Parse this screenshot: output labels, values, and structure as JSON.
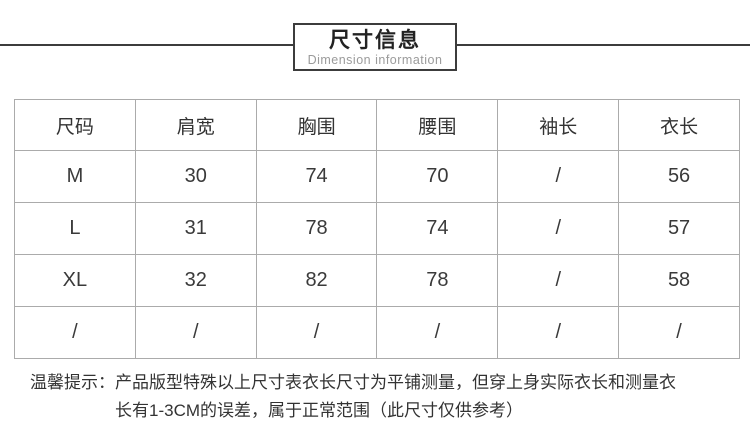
{
  "header": {
    "title": "尺寸信息",
    "subtitle": "Dimension information"
  },
  "table": {
    "columns": [
      "尺码",
      "肩宽",
      "胸围",
      "腰围",
      "袖长",
      "衣长"
    ],
    "rows": [
      [
        "M",
        "30",
        "74",
        "70",
        "/",
        "56"
      ],
      [
        "L",
        "31",
        "78",
        "74",
        "/",
        "57"
      ],
      [
        "XL",
        "32",
        "82",
        "78",
        "/",
        "58"
      ],
      [
        "/",
        "/",
        "/",
        "/",
        "/",
        "/"
      ]
    ]
  },
  "note": {
    "label": "温馨提示：",
    "text": "产品版型特殊以上尺寸表衣长尺寸为平铺测量，但穿上身实际衣长和测量衣长有1-3CM的误差，属于正常范围（此尺寸仅供参考）"
  },
  "colors": {
    "divider": "#3c3c3c",
    "table_border": "#ababab",
    "text": "#333333",
    "subtitle": "#9b9b9b"
  }
}
